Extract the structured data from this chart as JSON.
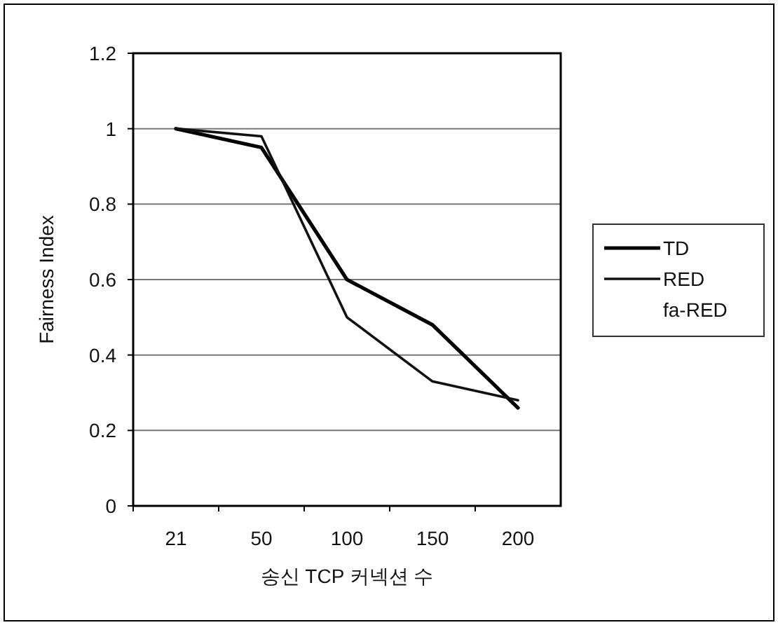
{
  "chart_data": {
    "type": "line",
    "xlabel": "송신 TCP 커넥션 수",
    "ylabel": "Fairness Index",
    "categories": [
      "21",
      "50",
      "100",
      "150",
      "200"
    ],
    "series": [
      {
        "name": "TD",
        "color": "#000000",
        "values": [
          1.0,
          0.95,
          0.6,
          0.48,
          0.26
        ]
      },
      {
        "name": "RED",
        "color": "#111111",
        "values": [
          1.0,
          0.98,
          0.5,
          0.33,
          0.28
        ]
      },
      {
        "name": "fa-RED",
        "values": [
          null,
          null,
          null,
          null,
          null
        ]
      }
    ],
    "ylim": [
      0,
      1.2
    ],
    "yticks": [
      0,
      0.2,
      0.4,
      0.6,
      0.8,
      1,
      1.2
    ],
    "grid": "y",
    "legend": "right",
    "marker": "none",
    "line_style": "solid"
  }
}
